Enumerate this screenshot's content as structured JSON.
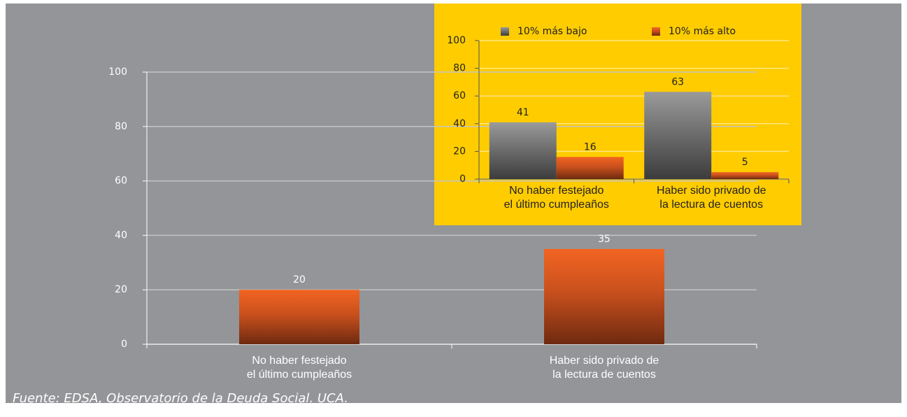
{
  "chart_data": [
    {
      "type": "bar",
      "categories": [
        "No haber festejado\nel último cumpleaños",
        "Haber sido privado de\nla lectura de cuentos"
      ],
      "values": [
        20,
        35
      ],
      "color": "#f26522",
      "ylim": [
        0,
        100
      ],
      "yticks": [
        0,
        20,
        40,
        60,
        80,
        100
      ],
      "grid": true
    },
    {
      "type": "bar",
      "categories": [
        "No haber festejado\nel último cumpleaños",
        "Haber sido privado de\nla lectura de cuentos"
      ],
      "series": [
        {
          "name": "10% más bajo",
          "color": "#8a8a8a",
          "values": [
            41,
            63
          ]
        },
        {
          "name": "10% más alto",
          "color": "#f26522",
          "values": [
            16,
            5
          ]
        }
      ],
      "ylim": [
        0,
        100
      ],
      "yticks": [
        0,
        20,
        40,
        60,
        80,
        100
      ],
      "grid": true,
      "legend": "top"
    }
  ],
  "source": "Fuente: EDSA, Observatorio de la Deuda Social. UCA."
}
